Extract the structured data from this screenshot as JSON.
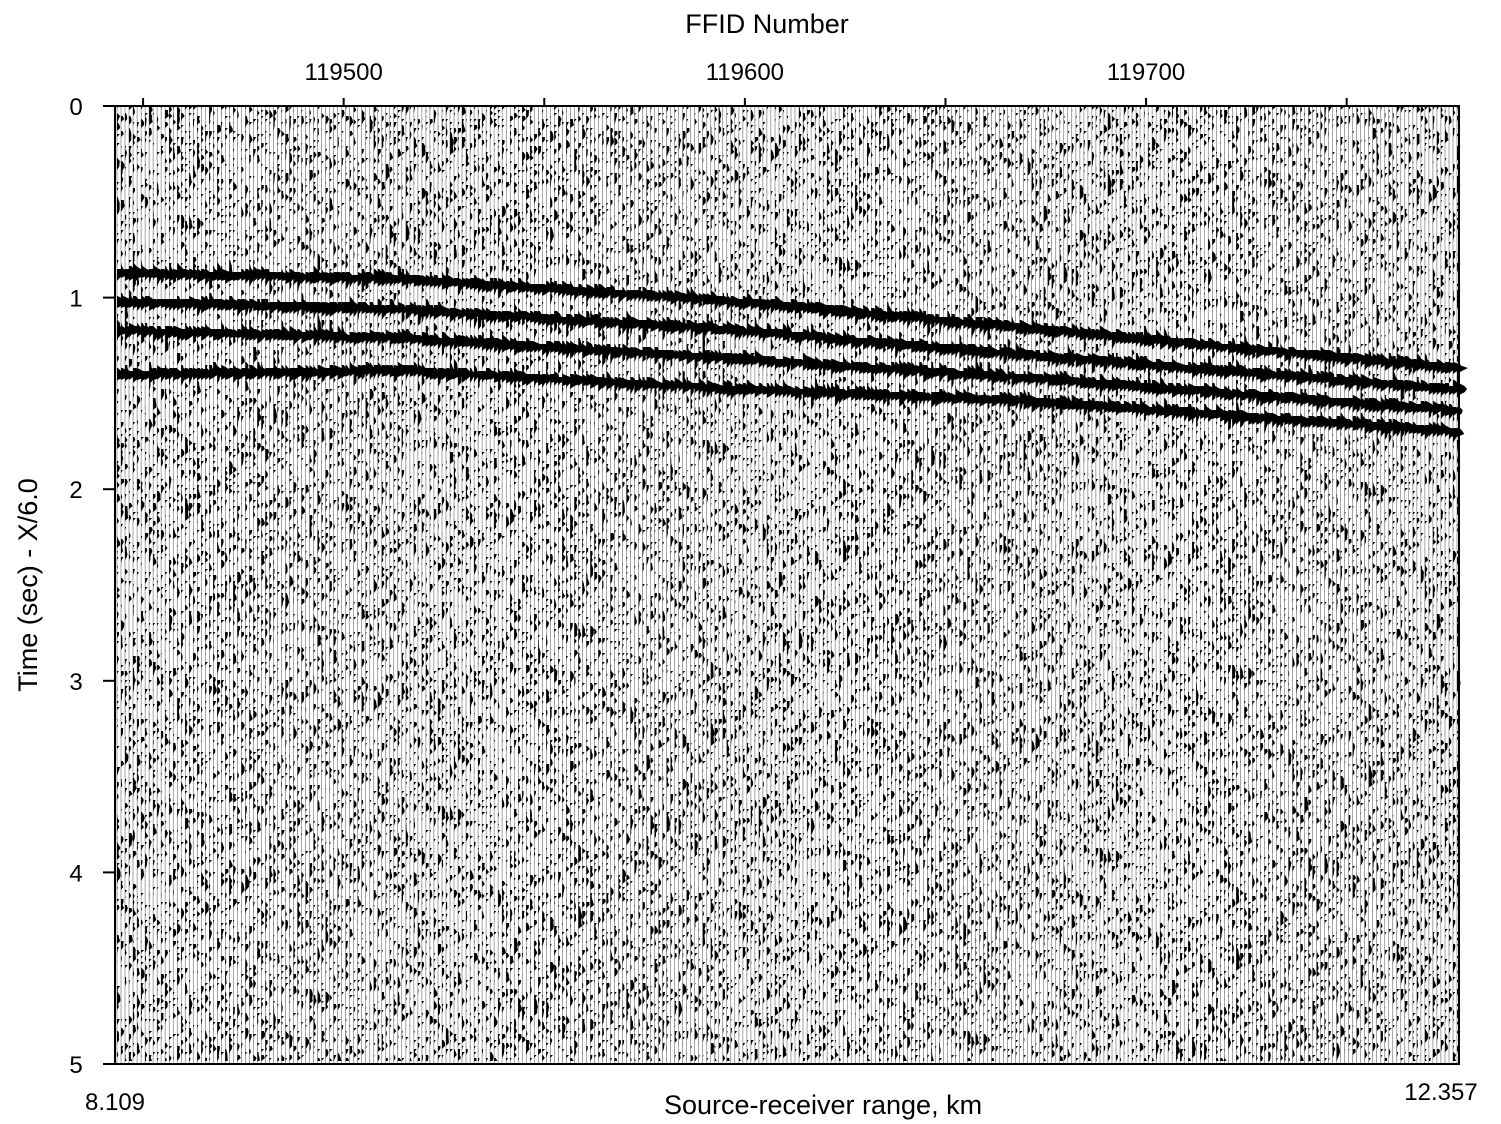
{
  "chart_data": {
    "type": "seismic-wiggle",
    "top_axis": {
      "label": "FFID Number",
      "ticks": [
        119450,
        119500,
        119550,
        119600,
        119650,
        119700,
        119750
      ],
      "labeled_ticks": [
        "119500",
        "119600",
        "119700"
      ],
      "range": [
        119443,
        119778
      ]
    },
    "left_axis": {
      "label": "Time (sec) - X/6.0",
      "ticks": [
        "0",
        "1",
        "2",
        "3",
        "4",
        "5"
      ],
      "range": [
        0,
        5
      ],
      "reversed": true
    },
    "bottom_axis": {
      "label": "Source-receiver range, km",
      "min_label": "8.109",
      "max_label": "12.357",
      "range": [
        8.109,
        12.357
      ]
    },
    "reflection_events": [
      {
        "name": "event-1",
        "points": [
          [
            8.109,
            0.87
          ],
          [
            9.0,
            0.9
          ],
          [
            10.0,
            1.01
          ],
          [
            11.0,
            1.16
          ],
          [
            12.357,
            1.37
          ]
        ]
      },
      {
        "name": "event-2",
        "points": [
          [
            8.109,
            1.02
          ],
          [
            9.0,
            1.06
          ],
          [
            10.0,
            1.16
          ],
          [
            11.0,
            1.3
          ],
          [
            12.357,
            1.48
          ]
        ]
      },
      {
        "name": "event-3",
        "points": [
          [
            8.109,
            1.17
          ],
          [
            9.0,
            1.21
          ],
          [
            10.0,
            1.31
          ],
          [
            11.0,
            1.42
          ],
          [
            12.357,
            1.59
          ]
        ]
      },
      {
        "name": "event-4",
        "points": [
          [
            8.109,
            1.4
          ],
          [
            9.0,
            1.38
          ],
          [
            10.0,
            1.47
          ],
          [
            11.0,
            1.54
          ],
          [
            12.357,
            1.7
          ]
        ]
      }
    ],
    "trace_count": 335,
    "fill": "#000000",
    "background": "#ffffff"
  }
}
